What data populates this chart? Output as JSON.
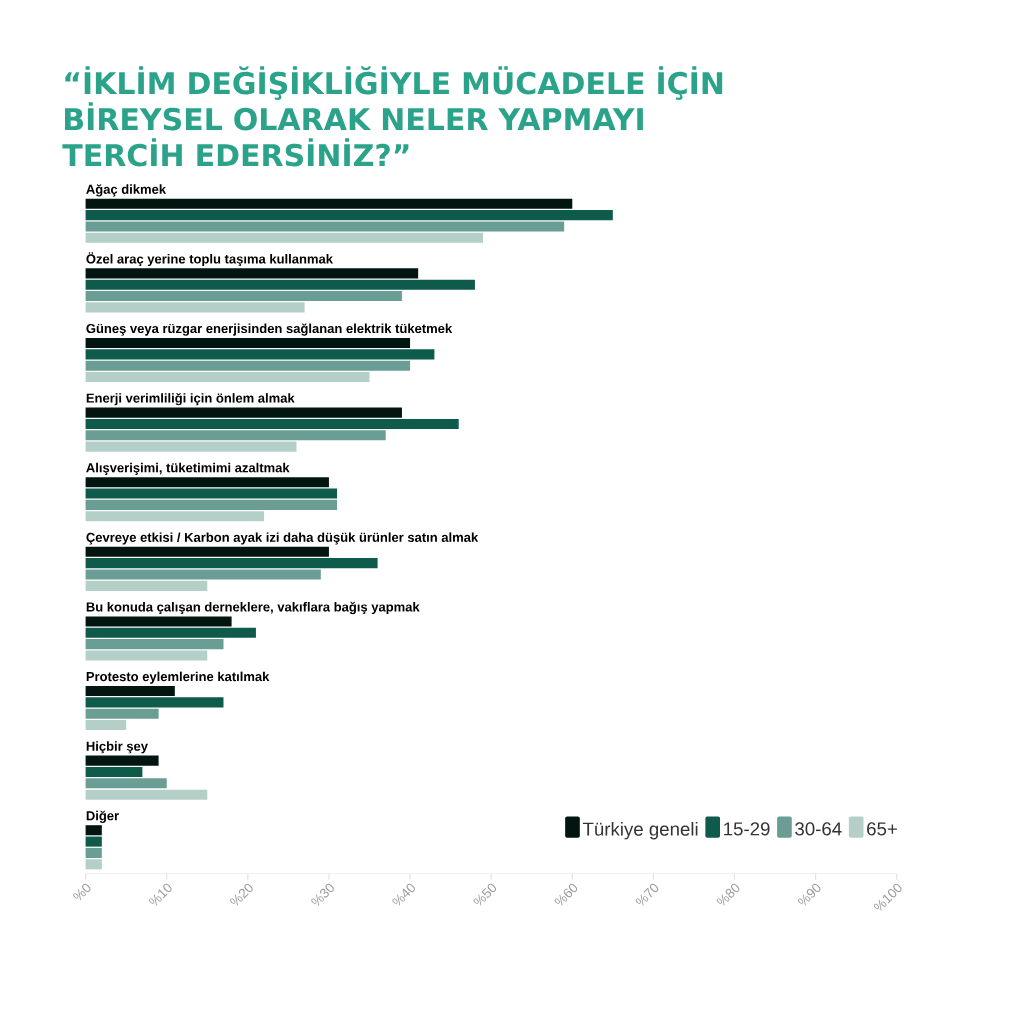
{
  "chart_data": {
    "type": "bar",
    "orientation": "horizontal",
    "title": "“İKLİM DEĞİŞİKLİĞİYLE MÜCADELE İÇİN BİREYSEL OLARAK NELER YAPMAYI TERCİH EDERSİNİZ?”",
    "categories": [
      "Ağaç dikmek",
      "Özel araç yerine toplu taşıma kullanmak",
      "Güneş veya rüzgar enerjisinden sağlanan elektrik tüketmek",
      "Enerji verimliliği için önlem almak",
      "Alışverişimi, tüketimimi azaltmak",
      "Çevreye etkisi / Karbon ayak izi daha düşük ürünler satın almak",
      "Bu konuda çalışan derneklere, vakıflara bağış yapmak",
      "Protesto eylemlerine katılmak",
      "Hiçbir şey",
      "Diğer"
    ],
    "series": [
      {
        "name": "Türkiye geneli",
        "color": "#021510",
        "values": [
          60,
          41,
          40,
          39,
          30,
          30,
          18,
          11,
          9,
          2
        ]
      },
      {
        "name": "15-29",
        "color": "#0e5a4b",
        "values": [
          65,
          48,
          43,
          46,
          31,
          36,
          21,
          17,
          7,
          2
        ]
      },
      {
        "name": "30-64",
        "color": "#6a9d93",
        "values": [
          59,
          39,
          40,
          37,
          31,
          29,
          17,
          9,
          10,
          2
        ]
      },
      {
        "name": "65+",
        "color": "#b4cec8",
        "values": [
          49,
          27,
          35,
          26,
          22,
          15,
          15,
          5,
          15,
          2
        ]
      }
    ],
    "xlim": [
      0,
      100
    ],
    "xticks": [
      {
        "value": 0,
        "label": "%0"
      },
      {
        "value": 10,
        "label": "%10"
      },
      {
        "value": 20,
        "label": "%20"
      },
      {
        "value": 30,
        "label": "%30"
      },
      {
        "value": 40,
        "label": "%40"
      },
      {
        "value": 50,
        "label": "%50"
      },
      {
        "value": 60,
        "label": "%60"
      },
      {
        "value": 70,
        "label": "%70"
      },
      {
        "value": 80,
        "label": "%80"
      },
      {
        "value": 90,
        "label": "%90"
      },
      {
        "value": 100,
        "label": "%100"
      }
    ],
    "legend": "bottom right"
  }
}
